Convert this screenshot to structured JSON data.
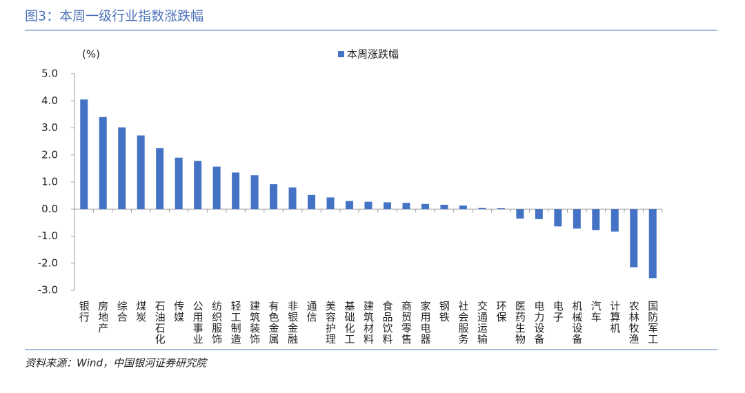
{
  "chart_data": {
    "type": "bar",
    "title": "图3：本周一级行业指数涨跌幅",
    "y_label": "(%)",
    "source": "资料来源：Wind，中国银河证券研究院",
    "categories": [
      "银行",
      "房地产",
      "综合",
      "煤炭",
      "石油石化",
      "传媒",
      "公用事业",
      "纺织服饰",
      "轻工制造",
      "建筑装饰",
      "有色金属",
      "非银金融",
      "通信",
      "美容护理",
      "基础化工",
      "建筑材料",
      "食品饮料",
      "商贸零售",
      "家用电器",
      "钢铁",
      "社会服务",
      "交通运输",
      "环保",
      "医药生物",
      "电力设备",
      "电子",
      "机械设备",
      "汽车",
      "计算机",
      "农林牧渔",
      "国防军工"
    ],
    "series": [
      {
        "name": "本周涨跌幅",
        "color": "#4472c4",
        "values": [
          4.05,
          3.4,
          3.02,
          2.72,
          2.25,
          1.9,
          1.78,
          1.57,
          1.35,
          1.25,
          0.92,
          0.8,
          0.52,
          0.43,
          0.3,
          0.27,
          0.25,
          0.23,
          0.19,
          0.16,
          0.13,
          0.04,
          0.03,
          -0.35,
          -0.37,
          -0.64,
          -0.72,
          -0.78,
          -0.83,
          -2.15,
          -2.55
        ]
      }
    ],
    "ylim": [
      -3,
      5
    ],
    "yticks": [
      {
        "value": 5,
        "label": "5.0"
      },
      {
        "value": 4,
        "label": "4.0"
      },
      {
        "value": 3,
        "label": "3.0"
      },
      {
        "value": 2,
        "label": "2.0"
      },
      {
        "value": 1,
        "label": "1.0"
      },
      {
        "value": 0,
        "label": "0.0"
      },
      {
        "value": -1,
        "label": "-1.0"
      },
      {
        "value": -2,
        "label": "-2.0"
      },
      {
        "value": -3,
        "label": "-3.0"
      }
    ],
    "negative_tick_color": "#e60012",
    "grid": false,
    "legend": "top"
  }
}
